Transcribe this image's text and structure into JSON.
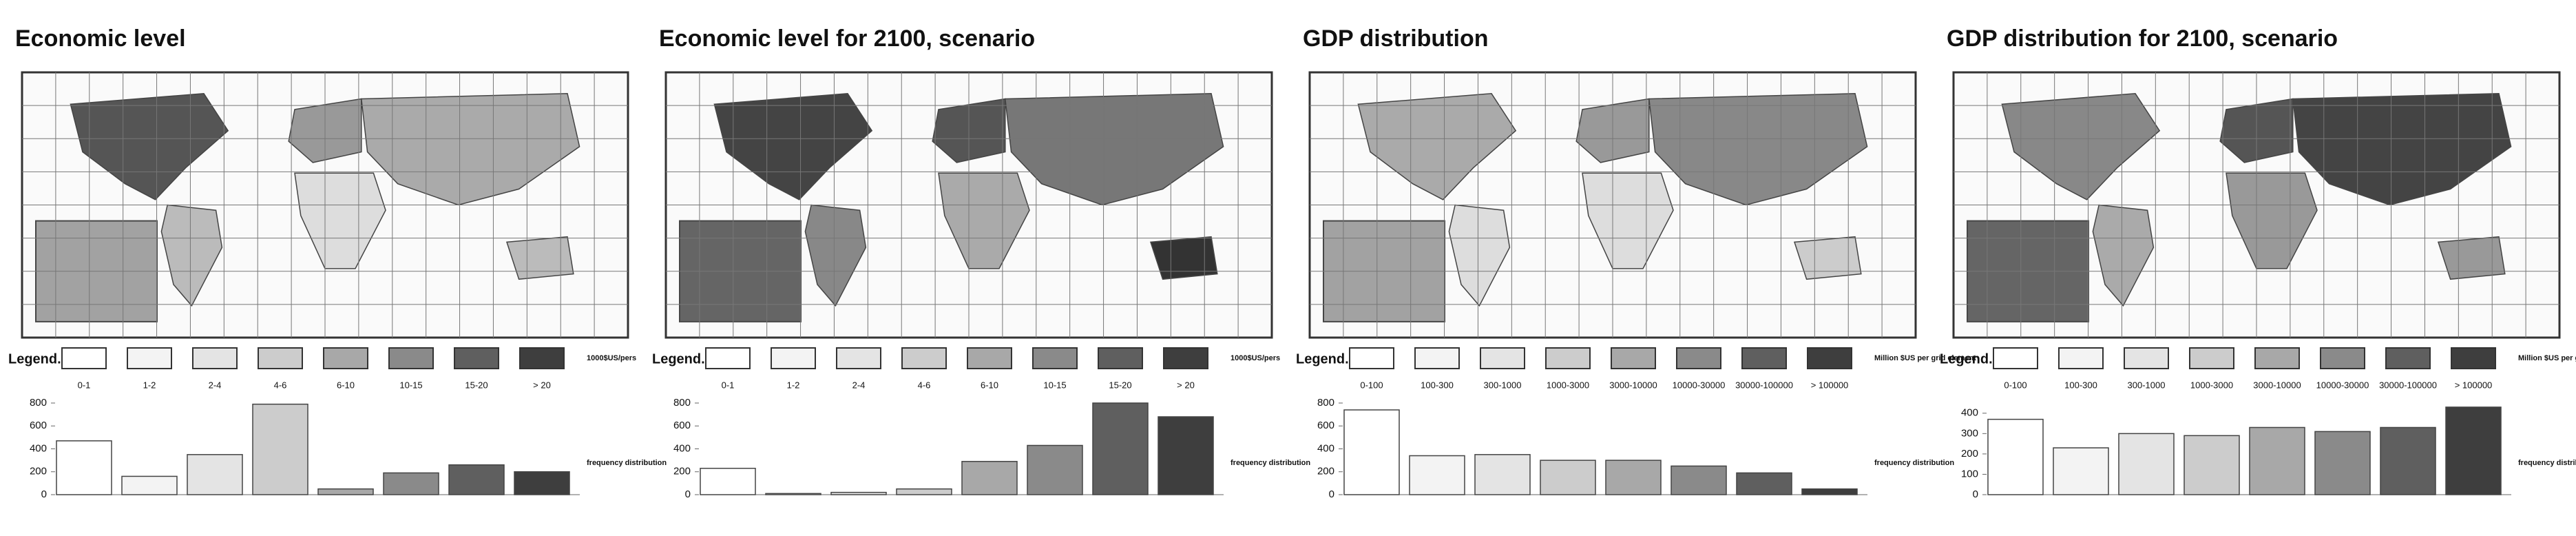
{
  "chart_data": [
    {
      "type": "bar",
      "title": "Economic level",
      "legend_title": "Legend.",
      "unit": "1000$US/pers",
      "axis_label": "frequency distribution",
      "categories": [
        "0-1",
        "1-2",
        "2-4",
        "4-6",
        "6-10",
        "10-15",
        "15-20",
        "> 20"
      ],
      "colors": [
        "#ffffff",
        "#f3f3f3",
        "#e4e4e4",
        "#cccccc",
        "#a8a8a8",
        "#8a8a8a",
        "#5f5f5f",
        "#3e3e3e"
      ],
      "values": [
        470,
        160,
        350,
        790,
        50,
        190,
        260,
        200
      ],
      "ylim": [
        0,
        800
      ],
      "yticks": [
        0,
        200,
        400,
        600,
        800
      ]
    },
    {
      "type": "bar",
      "title": "Economic level for 2100, scenario",
      "legend_title": "Legend.",
      "unit": "1000$US/pers",
      "axis_label": "frequency distribution",
      "categories": [
        "0-1",
        "1-2",
        "2-4",
        "4-6",
        "6-10",
        "10-15",
        "15-20",
        "> 20"
      ],
      "colors": [
        "#ffffff",
        "#f3f3f3",
        "#e4e4e4",
        "#cccccc",
        "#a8a8a8",
        "#8a8a8a",
        "#5f5f5f",
        "#3e3e3e"
      ],
      "values": [
        230,
        10,
        20,
        50,
        290,
        430,
        800,
        680
      ],
      "ylim": [
        0,
        800
      ],
      "yticks": [
        0,
        200,
        400,
        600,
        800
      ]
    },
    {
      "type": "bar",
      "title": "GDP distribution",
      "legend_title": "Legend.",
      "unit": "Million $US per grid element",
      "axis_label": "frequency distribution",
      "categories": [
        "0-100",
        "100-300",
        "300-1000",
        "1000-3000",
        "3000-10000",
        "10000-30000",
        "30000-100000",
        "> 100000"
      ],
      "colors": [
        "#ffffff",
        "#f3f3f3",
        "#e4e4e4",
        "#cccccc",
        "#a8a8a8",
        "#8a8a8a",
        "#5f5f5f",
        "#3e3e3e"
      ],
      "values": [
        740,
        340,
        350,
        300,
        300,
        250,
        190,
        50
      ],
      "ylim": [
        0,
        800
      ],
      "yticks": [
        0,
        200,
        400,
        600,
        800
      ]
    },
    {
      "type": "bar",
      "title": "GDP distribution for 2100, scenario",
      "legend_title": "Legend.",
      "unit": "Million $US per grid element",
      "axis_label": "frequency distribution",
      "categories": [
        "0-100",
        "100-300",
        "300-1000",
        "1000-3000",
        "3000-10000",
        "10000-30000",
        "30000-100000",
        "> 100000"
      ],
      "colors": [
        "#ffffff",
        "#f3f3f3",
        "#e4e4e4",
        "#cccccc",
        "#a8a8a8",
        "#8a8a8a",
        "#5f5f5f",
        "#3e3e3e"
      ],
      "values": [
        370,
        230,
        300,
        290,
        330,
        310,
        330,
        430
      ],
      "ylim": [
        0,
        450
      ],
      "yticks": [
        0,
        100,
        200,
        300,
        400
      ]
    }
  ]
}
